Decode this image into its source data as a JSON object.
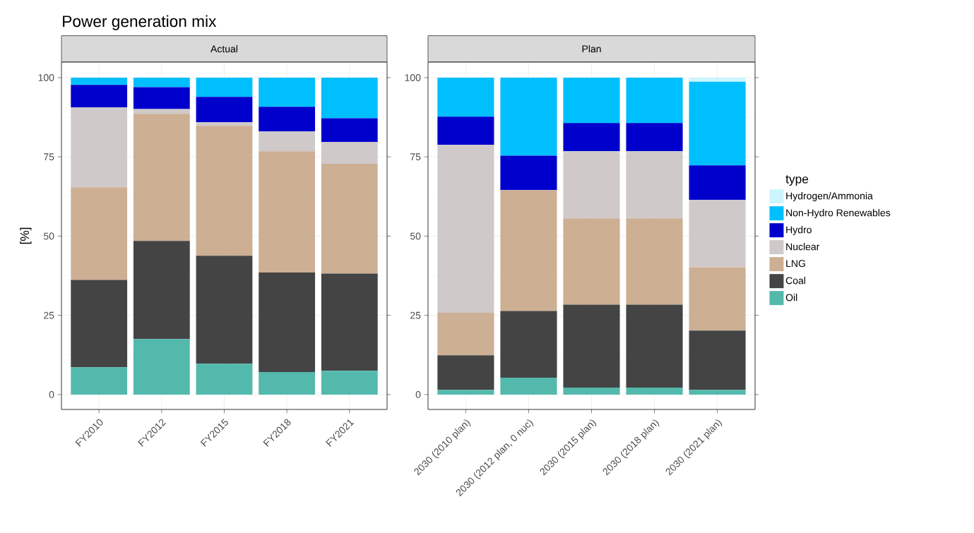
{
  "chart_data": [
    {
      "type": "bar",
      "title": "Power generation mix",
      "subtitle": "Actual",
      "ylabel": "[%]",
      "categories": [
        "FY2010",
        "FY2012",
        "FY2015",
        "FY2018",
        "FY2021"
      ],
      "stacked": true,
      "ylim": [
        -4.7,
        104.9
      ],
      "yticks": [
        0,
        25,
        50,
        75,
        100
      ],
      "grid": true,
      "series": [
        {
          "color": "#53b9ac",
          "values": [
            8.6,
            17.5,
            9.7,
            7.1,
            7.5
          ]
        },
        {
          "color": "#444444",
          "values": [
            27.6,
            31.0,
            34.1,
            31.4,
            30.7
          ]
        },
        {
          "color": "#cdaf94",
          "values": [
            29.2,
            40.1,
            41.0,
            38.3,
            34.6
          ]
        },
        {
          "color": "#cfcac9",
          "values": [
            25.2,
            1.5,
            1.1,
            6.2,
            6.9
          ]
        },
        {
          "color": "#0000cd",
          "values": [
            7.1,
            6.9,
            8.0,
            7.8,
            7.5
          ]
        },
        {
          "color": "#00bfff",
          "values": [
            2.3,
            3.0,
            6.1,
            9.2,
            12.8
          ]
        },
        {
          "color": "#ccf5ff",
          "values": [
            0,
            0,
            0,
            0,
            0
          ]
        }
      ]
    },
    {
      "type": "bar",
      "subtitle": "Plan",
      "categories": [
        "2030 (2010 plan)",
        "2030 (2012 plan, 0 nuc)",
        "2030 (2015 plan)",
        "2030 (2018 plan)",
        "2030 (2021 plan)"
      ],
      "stacked": true,
      "ylim": [
        -4.7,
        104.9
      ],
      "yticks": [
        0,
        25,
        50,
        75,
        100
      ],
      "grid": true,
      "legend": "right",
      "legend_title": "type",
      "series": [
        {
          "name": "Oil",
          "color": "#53b9ac",
          "values": [
            1.5,
            5.3,
            2.2,
            2.2,
            1.5
          ]
        },
        {
          "name": "Coal",
          "color": "#444444",
          "values": [
            10.9,
            21.1,
            26.2,
            26.2,
            18.7
          ]
        },
        {
          "name": "LNG",
          "color": "#cdaf94",
          "values": [
            13.4,
            38.1,
            27.2,
            27.2,
            20.0
          ]
        },
        {
          "name": "Nuclear",
          "color": "#cfcac9",
          "values": [
            53.0,
            0,
            21.2,
            21.2,
            21.2
          ]
        },
        {
          "name": "Hydro",
          "color": "#0000cd",
          "values": [
            8.9,
            10.9,
            8.9,
            8.9,
            10.9
          ]
        },
        {
          "name": "Non-Hydro Renewables",
          "color": "#00bfff",
          "values": [
            12.3,
            24.6,
            14.3,
            14.3,
            26.4
          ]
        },
        {
          "name": "Hydrogen/Ammonia",
          "color": "#ccf5ff",
          "values": [
            0,
            0,
            0,
            0,
            1.3
          ]
        }
      ]
    }
  ]
}
